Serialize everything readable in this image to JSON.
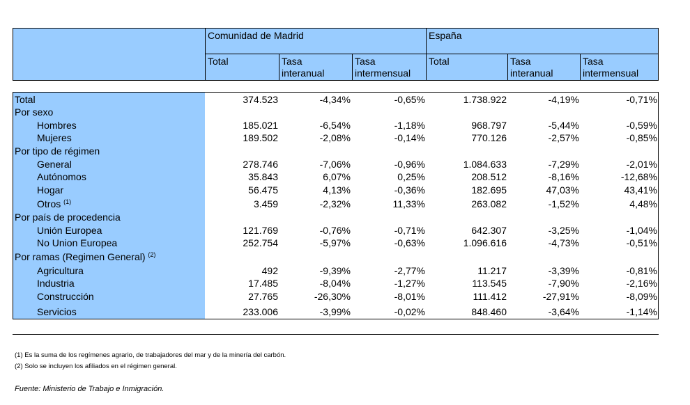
{
  "header": {
    "group_madrid": "Comunidad de Madrid",
    "group_spain": "España",
    "col_total": "Total",
    "col_tasa_interanual_1": "Tasa",
    "col_tasa_interanual_2": "interanual",
    "col_tasa_intermensual_1": "Tasa",
    "col_tasa_intermensual_2": "intermensual"
  },
  "rows": [
    {
      "label": "Total",
      "indent": false,
      "values": [
        "374.523",
        "-4,34%",
        "-0,65%",
        "1.738.922",
        "-4,19%",
        "-0,71%"
      ]
    },
    {
      "label": "Por sexo",
      "indent": false,
      "values": []
    },
    {
      "label": "Hombres",
      "indent": true,
      "values": [
        "185.021",
        "-6,54%",
        "-1,18%",
        "968.797",
        "-5,44%",
        "-0,59%"
      ]
    },
    {
      "label": "Mujeres",
      "indent": true,
      "values": [
        "189.502",
        "-2,08%",
        "-0,14%",
        "770.126",
        "-2,57%",
        "-0,85%"
      ]
    },
    {
      "label": "Por tipo de régimen",
      "indent": false,
      "values": []
    },
    {
      "label": "General",
      "indent": true,
      "values": [
        "278.746",
        "-7,06%",
        "-0,96%",
        "1.084.633",
        "-7,29%",
        "-2,01%"
      ]
    },
    {
      "label": "Autónomos",
      "indent": true,
      "values": [
        "35.843",
        "6,07%",
        "0,25%",
        "208.512",
        "-8,16%",
        "-12,68%"
      ]
    },
    {
      "label": "Hogar",
      "indent": true,
      "values": [
        "56.475",
        "4,13%",
        "-0,36%",
        "182.695",
        "47,03%",
        "43,41%"
      ]
    },
    {
      "label": "Otros",
      "sup": "(1)",
      "indent": true,
      "values": [
        "3.459",
        "-2,32%",
        "11,33%",
        "263.082",
        "-1,52%",
        "4,48%"
      ]
    },
    {
      "label": "Por país de procedencia",
      "indent": false,
      "values": []
    },
    {
      "label": "Unión Europea",
      "indent": true,
      "values": [
        "121.769",
        "-0,76%",
        "-0,71%",
        "642.307",
        "-3,25%",
        "-1,04%"
      ]
    },
    {
      "label": "No Union Europea",
      "indent": true,
      "values": [
        "252.754",
        "-5,97%",
        "-0,63%",
        "1.096.616",
        "-4,73%",
        "-0,51%"
      ]
    },
    {
      "label": "Por ramas (Regimen General)",
      "sup": "(2)",
      "indent": false,
      "values": []
    },
    {
      "label": "Agricultura",
      "indent": true,
      "values": [
        "492",
        "-9,39%",
        "-2,77%",
        "11.217",
        "-3,39%",
        "-0,81%"
      ]
    },
    {
      "label": "Industria",
      "indent": true,
      "values": [
        "17.485",
        "-8,04%",
        "-1,27%",
        "113.545",
        "-7,90%",
        "-2,16%"
      ]
    },
    {
      "label": "Construcción",
      "indent": true,
      "values": [
        "27.765",
        "-26,30%",
        "-8,01%",
        "111.412",
        "-27,91%",
        "-8,09%"
      ]
    },
    {
      "label": "Servicios",
      "indent": true,
      "values": [
        "233.006",
        "-3,99%",
        "-0,02%",
        "848.460",
        "-3,64%",
        "-1,14%"
      ]
    }
  ],
  "notes": [
    "(1) Es la suma de los regímenes  agrario, de trabajadores del mar y de la minería del carbón.",
    "(2) Solo se incluyen los afiliados en el régimen general."
  ],
  "source": "Fuente: Ministerio de Trabajo e Inmigración."
}
